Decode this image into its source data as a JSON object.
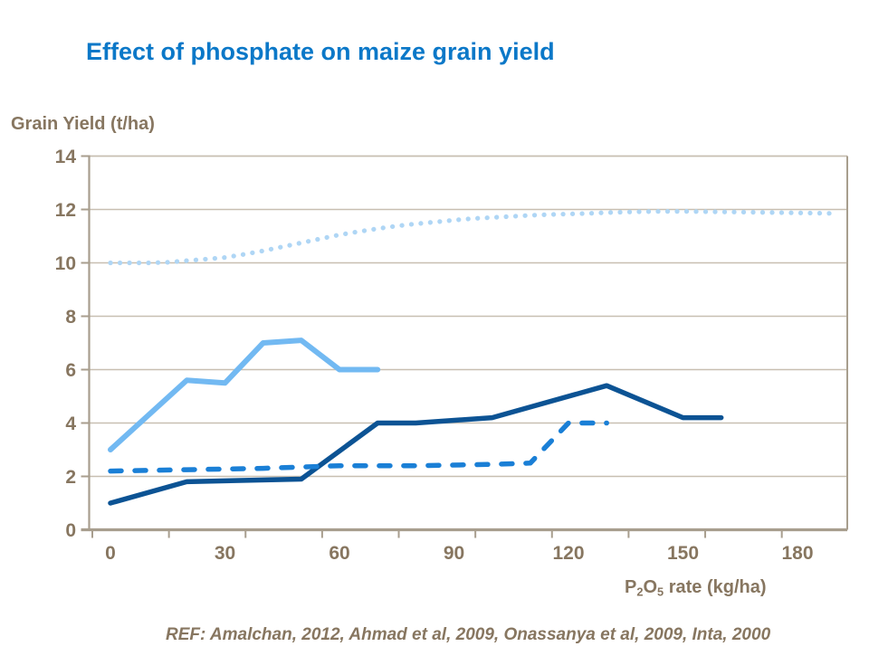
{
  "title": {
    "text": "Effect of phosphate on maize grain yield"
  },
  "y_axis_title": "Grain Yield (t/ha)",
  "x_axis_title": {
    "p": "P",
    "sub2": "2",
    "o": "O",
    "sub5": "5",
    "rest": " rate (kg/ha)"
  },
  "reference": {
    "label": "REF:",
    "text": " Amalchan, 2012, Ahmad et al, 2009, Onassanya et al, 2009, Inta, 2000"
  },
  "colors": {
    "title_blue": "#0B78C8",
    "axis_text": "#877660",
    "axis_line": "#A89E8E",
    "gridline": "#C8BFB1",
    "pale_blue_dotted": "#AFD6F5",
    "light_blue_solid": "#72B9F2",
    "navy_solid": "#0C5394",
    "blue_dashed": "#1A7FD6"
  },
  "chart_data": {
    "type": "line",
    "title": "Effect of phosphate on maize grain yield",
    "xlabel": "P2O5 rate (kg/ha)",
    "ylabel": "Grain Yield (t/ha)",
    "xlim": [
      -6,
      193
    ],
    "ylim": [
      0,
      14
    ],
    "x_ticks": [
      0,
      30,
      60,
      90,
      120,
      150,
      180
    ],
    "y_ticks": [
      0,
      2,
      4,
      6,
      8,
      10,
      12,
      14
    ],
    "grid": "horizontal-only",
    "legend": "none",
    "series": [
      {
        "name": "pale-blue-dotted-curve",
        "style": "dotted",
        "color_key": "pale_blue_dotted",
        "x": [
          0,
          5,
          10,
          15,
          20,
          25,
          30,
          35,
          40,
          45,
          50,
          55,
          60,
          65,
          70,
          75,
          80,
          85,
          90,
          95,
          100,
          105,
          110,
          115,
          120,
          125,
          130,
          135,
          140,
          145,
          150,
          155,
          160,
          165,
          170,
          175,
          180,
          185,
          190
        ],
        "y": [
          10.0,
          10.0,
          10.0,
          10.02,
          10.08,
          10.14,
          10.2,
          10.32,
          10.45,
          10.6,
          10.75,
          10.9,
          11.05,
          11.17,
          11.28,
          11.38,
          11.46,
          11.53,
          11.6,
          11.66,
          11.7,
          11.74,
          11.78,
          11.81,
          11.83,
          11.85,
          11.88,
          11.9,
          11.92,
          11.93,
          11.93,
          11.92,
          11.91,
          11.9,
          11.89,
          11.88,
          11.87,
          11.86,
          11.85
        ]
      },
      {
        "name": "light-blue-solid-line",
        "style": "solid",
        "color_key": "light_blue_solid",
        "x": [
          0,
          20,
          30,
          40,
          50,
          60,
          70
        ],
        "y": [
          3.0,
          5.6,
          5.5,
          7.0,
          7.1,
          6.0,
          6.0
        ]
      },
      {
        "name": "navy-solid-line",
        "style": "solid",
        "color_key": "navy_solid",
        "x": [
          0,
          20,
          50,
          70,
          80,
          100,
          130,
          150,
          160
        ],
        "y": [
          1.0,
          1.8,
          1.9,
          4.0,
          4.0,
          4.2,
          5.4,
          4.2,
          4.2
        ]
      },
      {
        "name": "blue-dashed-line",
        "style": "dashed",
        "color_key": "blue_dashed",
        "x": [
          0,
          20,
          40,
          60,
          80,
          100,
          110,
          120,
          130
        ],
        "y": [
          2.2,
          2.25,
          2.3,
          2.4,
          2.4,
          2.45,
          2.5,
          4.0,
          4.0
        ]
      }
    ]
  }
}
